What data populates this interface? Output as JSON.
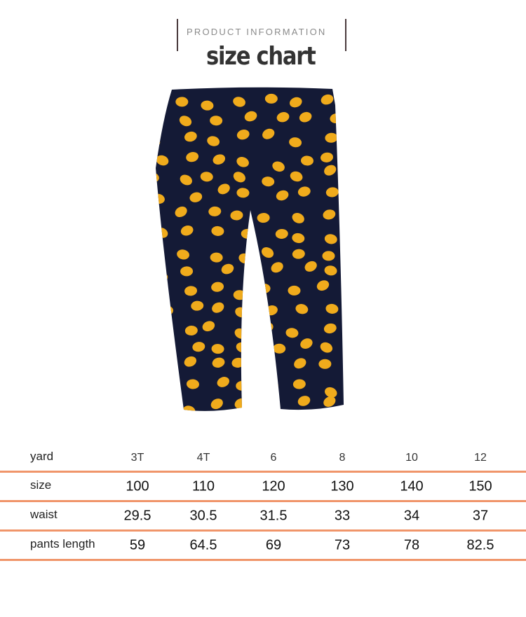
{
  "header": {
    "subtitle": "PRODUCT INFORMATION",
    "title": "size chart"
  },
  "product_image": {
    "description_icon": "pants-with-lemon-print-image",
    "colors": {
      "fabric": "#141a36",
      "print": "#f0ab1c"
    }
  },
  "table": {
    "accent_color": "#f0956a",
    "columns": [
      "3T",
      "4T",
      "6",
      "8",
      "10",
      "12"
    ],
    "header_label": "yard",
    "rows": [
      {
        "label": "size",
        "values": [
          "100",
          "110",
          "120",
          "130",
          "140",
          "150"
        ]
      },
      {
        "label": "waist",
        "values": [
          "29.5",
          "30.5",
          "31.5",
          "33",
          "34",
          "37"
        ]
      },
      {
        "label": "pants length",
        "values": [
          "59",
          "64.5",
          "69",
          "73",
          "78",
          "82.5"
        ]
      }
    ]
  }
}
